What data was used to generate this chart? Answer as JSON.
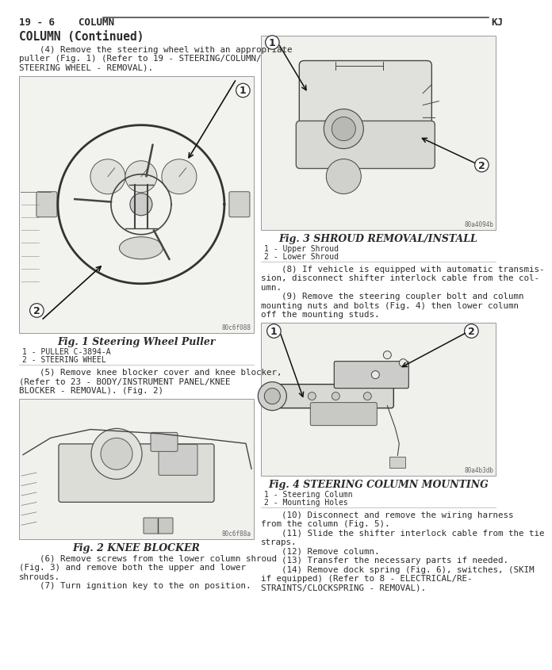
{
  "bg_color": "#ffffff",
  "text_color": "#2a2a2a",
  "line_color": "#3a3a3a",
  "fig_bg": "#f0f0ec",
  "fig_border": "#888888",
  "header_left": "19 - 6    COLUMN",
  "header_right": "KJ",
  "header_fs": 9,
  "title": "COLUMN (Continued)",
  "title_fs": 10.5,
  "body_fs": 7.8,
  "caption_fs": 9,
  "label_fs": 7,
  "ref_fs": 5.5,
  "para4_lines": [
    "    (4) Remove the steering wheel with an appropriate",
    "puller (Fig. 1) (Refer to 19 - STEERING/COLUMN/",
    "STEERING WHEEL - REMOVAL)."
  ],
  "fig1_ref": "80c6f088",
  "fig1_caption": "Fig. 1 Steering Wheel Puller",
  "fig1_label1": "1 - PULLER C-3894-A",
  "fig1_label2": "2 - STEERING WHEEL",
  "para5_lines": [
    "    (5) Remove knee blocker cover and knee blocker,",
    "(Refer to 23 - BODY/INSTRUMENT PANEL/KNEE",
    "BLOCKER - REMOVAL). (Fig. 2)"
  ],
  "fig2_ref": "80c6f88a",
  "fig2_caption": "Fig. 2 KNEE BLOCKER",
  "para6_lines": [
    "    (6) Remove screws from the lower column shroud",
    "(Fig. 3) and remove both the upper and lower",
    "shrouds.",
    "    (7) Turn ignition key to the on position."
  ],
  "fig3_ref": "80a4094b",
  "fig3_caption": "Fig. 3 SHROUD REMOVAL/INSTALL",
  "fig3_label1": "1 - Upper Shroud",
  "fig3_label2": "2 - Lower Shroud",
  "para8_lines": [
    "    (8) If vehicle is equipped with automatic transmis-",
    "sion, disconnect shifter interlock cable from the col-",
    "umn.",
    "    (9) Remove the steering coupler bolt and column",
    "mounting nuts and bolts (Fig. 4) then lower column",
    "off the mounting studs."
  ],
  "fig4_ref": "80a4b3db",
  "fig4_caption": "Fig. 4 STEERING COLUMN MOUNTING",
  "fig4_label1": "1 - Steering Column",
  "fig4_label2": "2 - Mounting Holes",
  "para10_lines": [
    "    (10) Disconnect and remove the wiring harness",
    "from the column (Fig. 5).",
    "    (11) Slide the shifter interlock cable from the tie",
    "straps.",
    "    (12) Remove column.",
    "    (13) Transfer the necessary parts if needed.",
    "    (14) Remove dock spring (Fig. 6), switches, (SKIM",
    "if equipped) (Refer to 8 - ELECTRICAL/RE-",
    "STRAINTS/CLOCKSPRING - REMOVAL)."
  ]
}
